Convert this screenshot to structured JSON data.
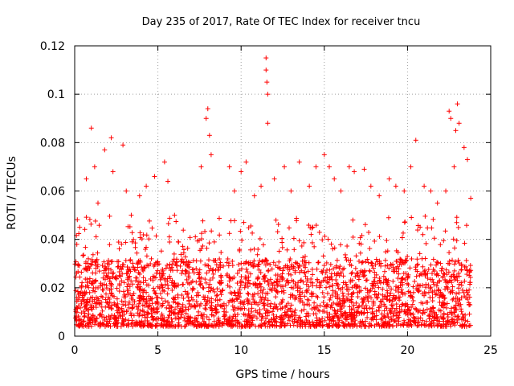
{
  "chart_data": {
    "type": "scatter",
    "title": "Day 235 of 2017, Rate Of TEC Index for receiver tncu",
    "xlabel": "GPS time / hours",
    "ylabel": "ROTI / TECUs",
    "xlim": [
      0,
      25
    ],
    "ylim": [
      0,
      0.12
    ],
    "x_ticks": [
      "0",
      "5",
      "10",
      "15",
      "20",
      "25"
    ],
    "y_ticks": [
      "0",
      "0.02",
      "0.04",
      "0.06",
      "0.08",
      "0.1",
      "0.12"
    ],
    "grid": true,
    "marker": "plus",
    "color": "#ff0000",
    "series": [
      {
        "description_points": "ROTI values sampled across 0-24 h; dense band 0.005-0.03 with spikes",
        "x": [
          0.2,
          0.4,
          0.6,
          0.9,
          1.1,
          1.3,
          1.6,
          1.9,
          2.1,
          2.4,
          2.7,
          3.0,
          3.2,
          3.5,
          3.8,
          4.1,
          4.4,
          4.7,
          5.0,
          5.3,
          5.6,
          5.9,
          6.2,
          6.5,
          6.8,
          7.1,
          7.4,
          7.7,
          8.0,
          8.3,
          8.6,
          8.9,
          9.2,
          9.5,
          9.8,
          10.1,
          10.4,
          10.7,
          11.0,
          11.3,
          11.6,
          11.9,
          12.2,
          12.5,
          12.8,
          13.1,
          13.4,
          13.7,
          14.0,
          14.3,
          14.6,
          14.9,
          15.2,
          15.5,
          15.8,
          16.1,
          16.4,
          16.7,
          17.0,
          17.3,
          17.6,
          17.9,
          18.2,
          18.5,
          18.8,
          19.1,
          19.4,
          19.7,
          20.0,
          20.3,
          20.6,
          20.9,
          21.2,
          21.5,
          21.8,
          22.1,
          22.4,
          22.7,
          23.0,
          23.3,
          23.6,
          0.3,
          0.7,
          1.0,
          1.2,
          1.4,
          1.8,
          2.2,
          2.3,
          2.9,
          3.1,
          3.4,
          3.9,
          4.3,
          4.8,
          5.4,
          5.6,
          6.0,
          7.6,
          7.9,
          8.0,
          8.1,
          8.2,
          9.3,
          9.6,
          10.0,
          10.3,
          10.8,
          11.2,
          11.5,
          11.5,
          11.55,
          11.6,
          11.6,
          12.0,
          12.6,
          13.0,
          13.5,
          14.1,
          14.5,
          15.0,
          15.3,
          15.6,
          16.0,
          16.5,
          16.8,
          17.4,
          17.8,
          18.3,
          18.9,
          19.3,
          19.8,
          20.2,
          20.5,
          21.0,
          21.4,
          21.8,
          22.3,
          22.5,
          22.6,
          22.8,
          22.9,
          23.0,
          23.1,
          23.4,
          23.6,
          23.8
        ],
        "y": [
          0.015,
          0.02,
          0.012,
          0.018,
          0.022,
          0.016,
          0.014,
          0.025,
          0.019,
          0.013,
          0.021,
          0.017,
          0.024,
          0.015,
          0.02,
          0.018,
          0.012,
          0.023,
          0.016,
          0.019,
          0.014,
          0.021,
          0.017,
          0.013,
          0.022,
          0.015,
          0.018,
          0.02,
          0.016,
          0.024,
          0.013,
          0.019,
          0.021,
          0.015,
          0.018,
          0.014,
          0.022,
          0.017,
          0.02,
          0.016,
          0.013,
          0.021,
          0.018,
          0.015,
          0.023,
          0.017,
          0.02,
          0.014,
          0.019,
          0.022,
          0.016,
          0.018,
          0.013,
          0.021,
          0.017,
          0.02,
          0.015,
          0.023,
          0.018,
          0.014,
          0.019,
          0.021,
          0.016,
          0.017,
          0.022,
          0.015,
          0.02,
          0.018,
          0.024,
          0.016,
          0.019,
          0.021,
          0.014,
          0.018,
          0.022,
          0.017,
          0.02,
          0.015,
          0.023,
          0.019,
          0.018,
          0.045,
          0.065,
          0.086,
          0.07,
          0.055,
          0.077,
          0.082,
          0.068,
          0.079,
          0.06,
          0.05,
          0.058,
          0.062,
          0.066,
          0.072,
          0.064,
          0.05,
          0.07,
          0.09,
          0.094,
          0.083,
          0.075,
          0.07,
          0.06,
          0.068,
          0.072,
          0.058,
          0.062,
          0.115,
          0.11,
          0.105,
          0.1,
          0.088,
          0.065,
          0.07,
          0.06,
          0.072,
          0.062,
          0.07,
          0.075,
          0.07,
          0.065,
          0.06,
          0.07,
          0.068,
          0.069,
          0.062,
          0.058,
          0.065,
          0.062,
          0.06,
          0.07,
          0.081,
          0.062,
          0.06,
          0.055,
          0.06,
          0.093,
          0.09,
          0.07,
          0.085,
          0.096,
          0.088,
          0.078,
          0.073,
          0.057
        ]
      }
    ]
  }
}
